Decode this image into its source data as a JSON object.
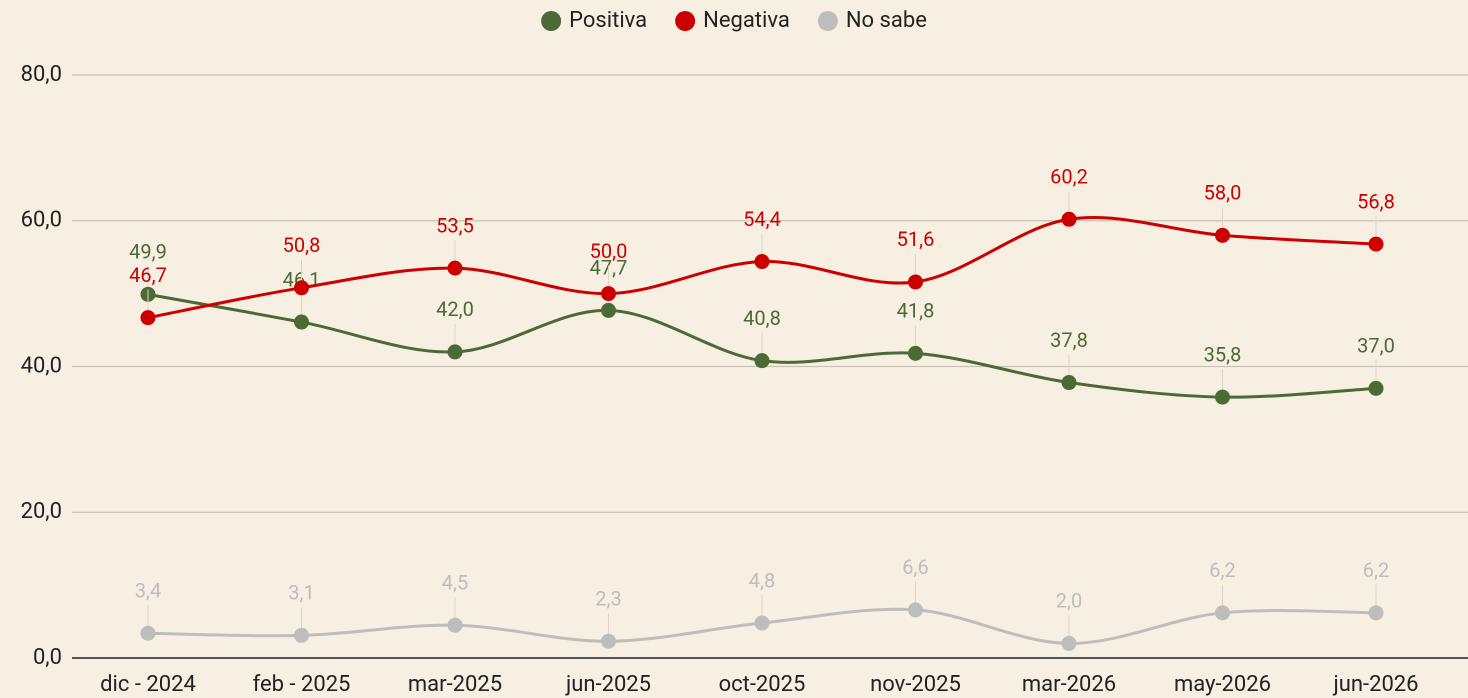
{
  "chart_data": {
    "type": "line",
    "categories": [
      "dic - 2024",
      "feb - 2025",
      "mar-2025",
      "jun-2025",
      "oct-2025",
      "nov-2025",
      "mar-2026",
      "may-2026",
      "jun-2026"
    ],
    "series": [
      {
        "name": "Positiva",
        "color": "#4b6a35",
        "values": [
          49.9,
          46.1,
          42.0,
          47.7,
          40.8,
          41.8,
          37.8,
          35.8,
          37.0
        ],
        "value_labels": [
          "49,9",
          "46,1",
          "42,0",
          "47,7",
          "40,8",
          "41,8",
          "37,8",
          "35,8",
          "37,0"
        ]
      },
      {
        "name": "Negativa",
        "color": "#cc0000",
        "values": [
          46.7,
          50.8,
          53.5,
          50.0,
          54.4,
          51.6,
          60.2,
          58.0,
          56.8
        ],
        "value_labels": [
          "46,7",
          "50,8",
          "53,5",
          "50,0",
          "54,4",
          "51,6",
          "60,2",
          "58,0",
          "56,8"
        ]
      },
      {
        "name": "No sabe",
        "color": "#bdbdbd",
        "values": [
          3.4,
          3.1,
          4.5,
          2.3,
          4.8,
          6.6,
          2.0,
          6.2,
          6.2
        ],
        "value_labels": [
          "3,4",
          "3,1",
          "4,5",
          "2,3",
          "4,8",
          "6,6",
          "2,0",
          "6,2",
          "6,2"
        ]
      }
    ],
    "ylim": [
      0,
      80
    ],
    "yticks": [
      {
        "value": 0,
        "label": "0,0"
      },
      {
        "value": 20,
        "label": "20,0"
      },
      {
        "value": 40,
        "label": "40,0"
      },
      {
        "value": 60,
        "label": "60,0"
      },
      {
        "value": 80,
        "label": "80,0"
      }
    ],
    "grid": true,
    "legend": "top"
  }
}
